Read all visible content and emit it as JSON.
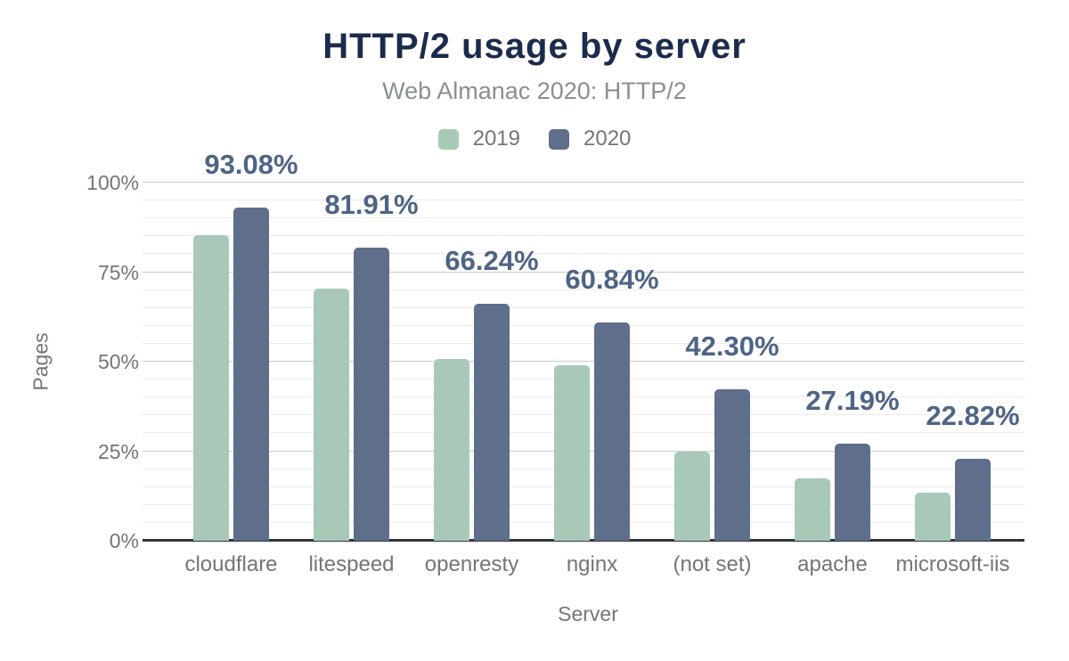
{
  "chart_data": {
    "type": "bar",
    "title": "HTTP/2 usage by server",
    "subtitle": "Web Almanac 2020: HTTP/2",
    "xlabel": "Server",
    "ylabel": "Pages",
    "categories": [
      "cloudflare",
      "litespeed",
      "openresty",
      "nginx",
      "(not set)",
      "apache",
      "microsoft-iis"
    ],
    "series": [
      {
        "name": "2019",
        "color": "#a8c9b8",
        "values": [
          85.4,
          70.4,
          50.8,
          48.9,
          25.0,
          17.5,
          13.5
        ]
      },
      {
        "name": "2020",
        "color": "#5e6e8b",
        "values": [
          93.08,
          81.91,
          66.24,
          60.84,
          42.3,
          27.19,
          22.82
        ]
      }
    ],
    "value_labels": [
      "93.08%",
      "81.91%",
      "66.24%",
      "60.84%",
      "42.30%",
      "27.19%",
      "22.82%"
    ],
    "value_labels_series": "2020",
    "ylim": [
      0,
      100
    ],
    "y_ticks": [
      {
        "value": 0,
        "label": "0%"
      },
      {
        "value": 25,
        "label": "25%"
      },
      {
        "value": 50,
        "label": "50%"
      },
      {
        "value": 75,
        "label": "75%"
      },
      {
        "value": 100,
        "label": "100%"
      }
    ],
    "grid": {
      "minor_step": 5,
      "major_step": 25,
      "minor_color": "#ebebeb",
      "major_color": "#cdcdcd"
    },
    "colors": {
      "title": "#1b2b4b",
      "subtitle": "#8a8f93",
      "axis_text": "#757575",
      "value_label": "#4e6485",
      "axis_line": "#2e353d",
      "background": "#ffffff"
    },
    "legend_position": "top"
  }
}
